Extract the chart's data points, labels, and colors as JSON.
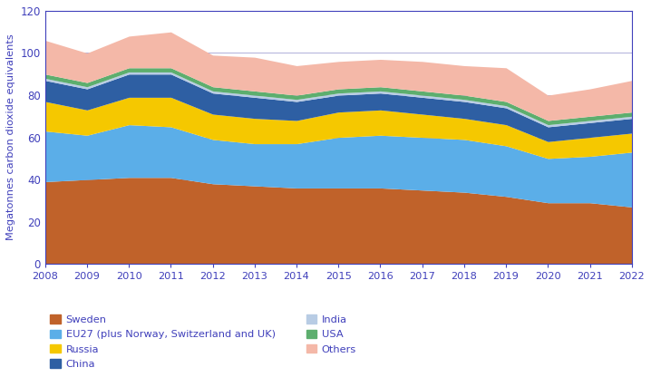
{
  "years": [
    2008,
    2009,
    2010,
    2011,
    2012,
    2013,
    2014,
    2015,
    2016,
    2017,
    2018,
    2019,
    2020,
    2021,
    2022
  ],
  "series": {
    "Sweden": [
      39,
      40,
      41,
      41,
      38,
      37,
      36,
      36,
      36,
      35,
      34,
      32,
      29,
      29,
      27
    ],
    "EU27": [
      24,
      21,
      25,
      24,
      21,
      20,
      21,
      24,
      25,
      25,
      25,
      24,
      21,
      22,
      26
    ],
    "Russia": [
      14,
      12,
      13,
      14,
      12,
      12,
      11,
      12,
      12,
      11,
      10,
      10,
      8,
      9,
      9
    ],
    "China": [
      10,
      10,
      11,
      11,
      10,
      10,
      9,
      8,
      8,
      8,
      8,
      8,
      7,
      7,
      7
    ],
    "India": [
      1,
      1,
      1,
      1,
      1,
      1,
      1,
      1,
      1,
      1,
      1,
      1,
      1,
      1,
      1
    ],
    "USA": [
      2,
      2,
      2,
      2,
      2,
      2,
      2,
      2,
      2,
      2,
      2,
      2,
      2,
      2,
      2
    ],
    "Others": [
      16,
      14,
      15,
      17,
      15,
      16,
      14,
      13,
      13,
      14,
      14,
      16,
      12,
      13,
      15
    ]
  },
  "colors": {
    "Sweden": "#c0622a",
    "EU27": "#5baee8",
    "Russia": "#f5c800",
    "China": "#2e5fa3",
    "India": "#b8cce4",
    "USA": "#5dae6e",
    "Others": "#f4b8a8"
  },
  "stack_order": [
    "Sweden",
    "EU27",
    "Russia",
    "China",
    "India",
    "USA",
    "Others"
  ],
  "legend_left": [
    "Sweden",
    "Russia",
    "India",
    "Others"
  ],
  "legend_right": [
    "EU27",
    "China",
    "USA"
  ],
  "legend_labels": {
    "Sweden": "Sweden",
    "EU27": "EU27 (plus Norway, Switzerland and UK)",
    "Russia": "Russia",
    "China": "China",
    "India": "India",
    "USA": "USA",
    "Others": "Others"
  },
  "ylabel": "Megatonnes carbon dioxide equivalents",
  "ylim": [
    0,
    120
  ],
  "yticks": [
    0,
    20,
    40,
    60,
    80,
    100,
    120
  ],
  "axis_color": "#4040bb",
  "grid_color": "#9090cc",
  "tick_color": "#4040bb",
  "label_color": "#4040bb",
  "legend_text_color": "#4040bb",
  "background_color": "#ffffff"
}
